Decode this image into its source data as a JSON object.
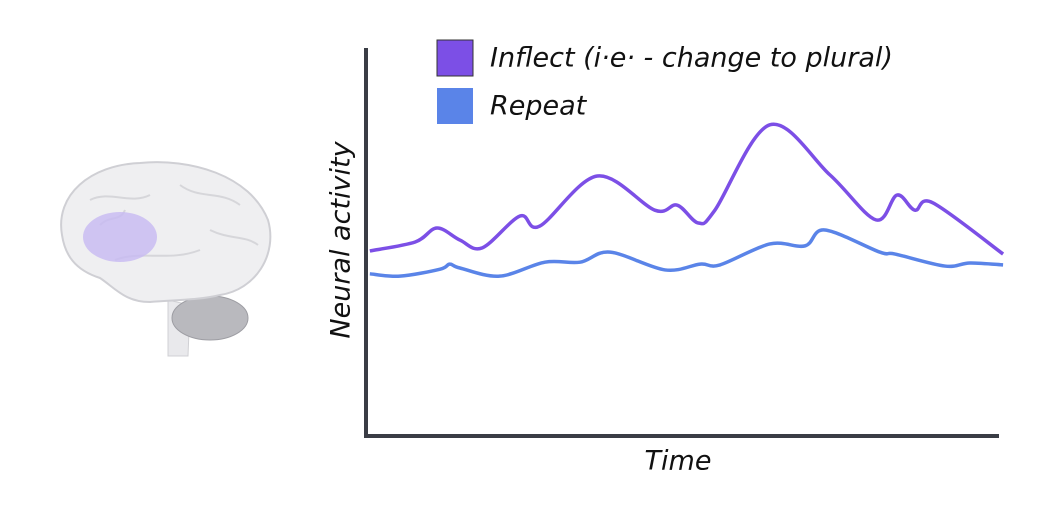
{
  "chart_data": {
    "type": "line",
    "x_label": "Time",
    "y_label": "Neural activity",
    "xlim": [
      0,
      100
    ],
    "ylim": [
      0,
      100
    ],
    "series": [
      {
        "name": "Inflect (i·e· - change to plural)",
        "color": "#7c4fe6",
        "x": [
          0.6,
          7.7,
          11.1,
          14.7,
          18.2,
          24.1,
          27.2,
          36.2,
          45.2,
          48.7,
          52.0,
          54.6,
          63.2,
          72.6,
          79.8,
          83.1,
          85.9,
          88.7,
          99.7
        ],
        "values": [
          47.7,
          50.0,
          53.6,
          50.5,
          48.5,
          56.7,
          54.1,
          67.0,
          58.2,
          59.5,
          54.9,
          58.2,
          80.2,
          67.3,
          55.7,
          62.1,
          58.2,
          60.1,
          46.9
        ]
      },
      {
        "name": "Repeat",
        "color": "#5a84e8",
        "x": [
          0.6,
          5.3,
          11.6,
          13.1,
          14.7,
          20.9,
          28.0,
          33.5,
          38.2,
          46.8,
          52.3,
          55.4,
          63.2,
          68.7,
          71.8,
          80.4,
          82.8,
          90.6,
          94.5,
          99.7
        ],
        "values": [
          41.8,
          41.2,
          43.0,
          44.3,
          43.3,
          41.2,
          44.8,
          44.8,
          47.4,
          42.8,
          44.3,
          44.1,
          49.5,
          49.0,
          53.1,
          47.4,
          46.9,
          43.8,
          44.6,
          44.1
        ]
      }
    ]
  }
}
